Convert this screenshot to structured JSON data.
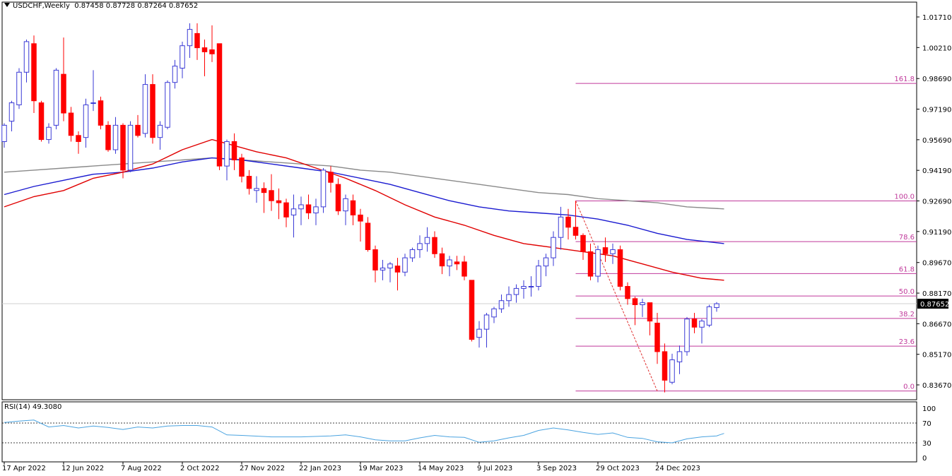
{
  "header": {
    "symbol": "USDCHF,Weekly",
    "ohlc": "0.87458 0.87728 0.87264 0.87652"
  },
  "rsi": {
    "label": "RSI(14) 49.3080",
    "levels_label": [
      "100",
      "70",
      "30",
      "0"
    ],
    "dotted_levels": [
      70,
      30
    ]
  },
  "colors": {
    "bull": "#3a3ad6",
    "bear": "#ff0000",
    "sma_fast": "#e00000",
    "sma_mid": "#1a1ad0",
    "sma_slow": "#8a8a8a",
    "fib": "#c0399b",
    "rsi": "#4aa3e0"
  },
  "chart_data": {
    "type": "candlestick",
    "price_ticks": [
      "1.01710",
      "1.00210",
      "0.98690",
      "0.97190",
      "0.95690",
      "0.94190",
      "0.92690",
      "0.91190",
      "0.89670",
      "0.88170",
      "0.86670",
      "0.85170",
      "0.83670"
    ],
    "x_ticks": [
      "17 Apr 2022",
      "12 Jun 2022",
      "7 Aug 2022",
      "2 Oct 2022",
      "27 Nov 2022",
      "22 Jan 2023",
      "19 Mar 2023",
      "14 May 2023",
      "9 Jul 2023",
      "3 Sep 2023",
      "29 Oct 2023",
      "24 Dec 2023"
    ],
    "x_tick_index": [
      0,
      8,
      16,
      24,
      32,
      40,
      48,
      56,
      64,
      72,
      80,
      88
    ],
    "current_price": "0.87652",
    "fibonacci": {
      "high": 0.9269,
      "low": 0.8337,
      "start_index": 77,
      "end_index": 88,
      "levels": [
        {
          "label": "161.8",
          "ratio": 1.618
        },
        {
          "label": "100.0",
          "ratio": 1.0
        },
        {
          "label": "78.6",
          "ratio": 0.786
        },
        {
          "label": "61.8",
          "ratio": 0.618
        },
        {
          "label": "50.0",
          "ratio": 0.5
        },
        {
          "label": "38.2",
          "ratio": 0.382
        },
        {
          "label": "23.6",
          "ratio": 0.236
        },
        {
          "label": "0.0",
          "ratio": 0.0
        }
      ]
    },
    "candles": [
      {
        "o": 0.956,
        "h": 0.965,
        "l": 0.953,
        "c": 0.964
      },
      {
        "o": 0.966,
        "h": 0.976,
        "l": 0.961,
        "c": 0.975
      },
      {
        "o": 0.974,
        "h": 0.992,
        "l": 0.972,
        "c": 0.99
      },
      {
        "o": 0.99,
        "h": 1.006,
        "l": 0.985,
        "c": 1.005
      },
      {
        "o": 1.004,
        "h": 1.008,
        "l": 0.97,
        "c": 0.976
      },
      {
        "o": 0.975,
        "h": 0.976,
        "l": 0.956,
        "c": 0.957
      },
      {
        "o": 0.957,
        "h": 0.965,
        "l": 0.955,
        "c": 0.963
      },
      {
        "o": 0.964,
        "h": 0.992,
        "l": 0.962,
        "c": 0.991
      },
      {
        "o": 0.989,
        "h": 1.007,
        "l": 0.966,
        "c": 0.97
      },
      {
        "o": 0.97,
        "h": 0.973,
        "l": 0.956,
        "c": 0.959
      },
      {
        "o": 0.959,
        "h": 0.961,
        "l": 0.95,
        "c": 0.956
      },
      {
        "o": 0.958,
        "h": 0.977,
        "l": 0.953,
        "c": 0.974
      },
      {
        "o": 0.975,
        "h": 0.991,
        "l": 0.971,
        "c": 0.975
      },
      {
        "o": 0.976,
        "h": 0.978,
        "l": 0.962,
        "c": 0.964
      },
      {
        "o": 0.964,
        "h": 0.966,
        "l": 0.951,
        "c": 0.952
      },
      {
        "o": 0.952,
        "h": 0.968,
        "l": 0.95,
        "c": 0.964
      },
      {
        "o": 0.964,
        "h": 0.965,
        "l": 0.938,
        "c": 0.942
      },
      {
        "o": 0.942,
        "h": 0.966,
        "l": 0.941,
        "c": 0.964
      },
      {
        "o": 0.964,
        "h": 0.969,
        "l": 0.958,
        "c": 0.959
      },
      {
        "o": 0.96,
        "h": 0.989,
        "l": 0.958,
        "c": 0.984
      },
      {
        "o": 0.984,
        "h": 0.989,
        "l": 0.955,
        "c": 0.958
      },
      {
        "o": 0.958,
        "h": 0.966,
        "l": 0.952,
        "c": 0.964
      },
      {
        "o": 0.963,
        "h": 0.986,
        "l": 0.962,
        "c": 0.985
      },
      {
        "o": 0.985,
        "h": 0.996,
        "l": 0.982,
        "c": 0.993
      },
      {
        "o": 0.992,
        "h": 1.005,
        "l": 0.987,
        "c": 1.003
      },
      {
        "o": 1.003,
        "h": 1.014,
        "l": 0.997,
        "c": 1.011
      },
      {
        "o": 1.009,
        "h": 1.014,
        "l": 0.996,
        "c": 1.002
      },
      {
        "o": 1.002,
        "h": 1.006,
        "l": 0.988,
        "c": 1.0
      },
      {
        "o": 1.001,
        "h": 1.013,
        "l": 0.995,
        "c": 0.999
      },
      {
        "o": 1.004,
        "h": 1.004,
        "l": 0.942,
        "c": 0.944
      },
      {
        "o": 0.944,
        "h": 0.957,
        "l": 0.937,
        "c": 0.956
      },
      {
        "o": 0.956,
        "h": 0.96,
        "l": 0.942,
        "c": 0.947
      },
      {
        "o": 0.948,
        "h": 0.95,
        "l": 0.936,
        "c": 0.939
      },
      {
        "o": 0.939,
        "h": 0.942,
        "l": 0.93,
        "c": 0.933
      },
      {
        "o": 0.932,
        "h": 0.939,
        "l": 0.926,
        "c": 0.933
      },
      {
        "o": 0.933,
        "h": 0.936,
        "l": 0.921,
        "c": 0.931
      },
      {
        "o": 0.932,
        "h": 0.94,
        "l": 0.922,
        "c": 0.927
      },
      {
        "o": 0.927,
        "h": 0.933,
        "l": 0.918,
        "c": 0.926
      },
      {
        "o": 0.926,
        "h": 0.928,
        "l": 0.914,
        "c": 0.919
      },
      {
        "o": 0.92,
        "h": 0.93,
        "l": 0.909,
        "c": 0.923
      },
      {
        "o": 0.923,
        "h": 0.929,
        "l": 0.915,
        "c": 0.925
      },
      {
        "o": 0.925,
        "h": 0.93,
        "l": 0.918,
        "c": 0.921
      },
      {
        "o": 0.921,
        "h": 0.928,
        "l": 0.915,
        "c": 0.924
      },
      {
        "o": 0.924,
        "h": 0.943,
        "l": 0.921,
        "c": 0.942
      },
      {
        "o": 0.941,
        "h": 0.944,
        "l": 0.931,
        "c": 0.936
      },
      {
        "o": 0.935,
        "h": 0.938,
        "l": 0.92,
        "c": 0.922
      },
      {
        "o": 0.922,
        "h": 0.93,
        "l": 0.915,
        "c": 0.928
      },
      {
        "o": 0.927,
        "h": 0.93,
        "l": 0.915,
        "c": 0.92
      },
      {
        "o": 0.92,
        "h": 0.923,
        "l": 0.907,
        "c": 0.917
      },
      {
        "o": 0.916,
        "h": 0.919,
        "l": 0.902,
        "c": 0.903
      },
      {
        "o": 0.903,
        "h": 0.905,
        "l": 0.887,
        "c": 0.893
      },
      {
        "o": 0.893,
        "h": 0.898,
        "l": 0.888,
        "c": 0.894
      },
      {
        "o": 0.894,
        "h": 0.897,
        "l": 0.887,
        "c": 0.896
      },
      {
        "o": 0.895,
        "h": 0.899,
        "l": 0.883,
        "c": 0.892
      },
      {
        "o": 0.892,
        "h": 0.901,
        "l": 0.89,
        "c": 0.899
      },
      {
        "o": 0.899,
        "h": 0.904,
        "l": 0.897,
        "c": 0.903
      },
      {
        "o": 0.903,
        "h": 0.91,
        "l": 0.899,
        "c": 0.906
      },
      {
        "o": 0.906,
        "h": 0.914,
        "l": 0.902,
        "c": 0.909
      },
      {
        "o": 0.909,
        "h": 0.912,
        "l": 0.899,
        "c": 0.901
      },
      {
        "o": 0.901,
        "h": 0.904,
        "l": 0.891,
        "c": 0.895
      },
      {
        "o": 0.895,
        "h": 0.9,
        "l": 0.89,
        "c": 0.898
      },
      {
        "o": 0.897,
        "h": 0.9,
        "l": 0.893,
        "c": 0.896
      },
      {
        "o": 0.897,
        "h": 0.9,
        "l": 0.888,
        "c": 0.89
      },
      {
        "o": 0.888,
        "h": 0.888,
        "l": 0.858,
        "c": 0.859
      },
      {
        "o": 0.86,
        "h": 0.868,
        "l": 0.855,
        "c": 0.864
      },
      {
        "o": 0.864,
        "h": 0.872,
        "l": 0.855,
        "c": 0.871
      },
      {
        "o": 0.87,
        "h": 0.875,
        "l": 0.867,
        "c": 0.874
      },
      {
        "o": 0.874,
        "h": 0.881,
        "l": 0.872,
        "c": 0.878
      },
      {
        "o": 0.878,
        "h": 0.885,
        "l": 0.875,
        "c": 0.881
      },
      {
        "o": 0.881,
        "h": 0.886,
        "l": 0.877,
        "c": 0.884
      },
      {
        "o": 0.884,
        "h": 0.888,
        "l": 0.879,
        "c": 0.885
      },
      {
        "o": 0.885,
        "h": 0.89,
        "l": 0.88,
        "c": 0.885
      },
      {
        "o": 0.885,
        "h": 0.898,
        "l": 0.883,
        "c": 0.895
      },
      {
        "o": 0.895,
        "h": 0.901,
        "l": 0.89,
        "c": 0.899
      },
      {
        "o": 0.899,
        "h": 0.912,
        "l": 0.895,
        "c": 0.909
      },
      {
        "o": 0.909,
        "h": 0.924,
        "l": 0.903,
        "c": 0.919
      },
      {
        "o": 0.919,
        "h": 0.923,
        "l": 0.908,
        "c": 0.914
      },
      {
        "o": 0.914,
        "h": 0.927,
        "l": 0.908,
        "c": 0.91
      },
      {
        "o": 0.91,
        "h": 0.911,
        "l": 0.898,
        "c": 0.902
      },
      {
        "o": 0.902,
        "h": 0.906,
        "l": 0.888,
        "c": 0.89
      },
      {
        "o": 0.89,
        "h": 0.905,
        "l": 0.887,
        "c": 0.903
      },
      {
        "o": 0.904,
        "h": 0.909,
        "l": 0.897,
        "c": 0.901
      },
      {
        "o": 0.901,
        "h": 0.906,
        "l": 0.896,
        "c": 0.903
      },
      {
        "o": 0.903,
        "h": 0.905,
        "l": 0.883,
        "c": 0.885
      },
      {
        "o": 0.885,
        "h": 0.887,
        "l": 0.876,
        "c": 0.879
      },
      {
        "o": 0.879,
        "h": 0.88,
        "l": 0.866,
        "c": 0.876
      },
      {
        "o": 0.876,
        "h": 0.879,
        "l": 0.87,
        "c": 0.877
      },
      {
        "o": 0.877,
        "h": 0.877,
        "l": 0.861,
        "c": 0.868
      },
      {
        "o": 0.867,
        "h": 0.872,
        "l": 0.847,
        "c": 0.853
      },
      {
        "o": 0.853,
        "h": 0.857,
        "l": 0.833,
        "c": 0.839
      },
      {
        "o": 0.838,
        "h": 0.852,
        "l": 0.837,
        "c": 0.849
      },
      {
        "o": 0.848,
        "h": 0.856,
        "l": 0.842,
        "c": 0.853
      },
      {
        "o": 0.853,
        "h": 0.87,
        "l": 0.851,
        "c": 0.869
      },
      {
        "o": 0.869,
        "h": 0.872,
        "l": 0.862,
        "c": 0.865
      },
      {
        "o": 0.865,
        "h": 0.869,
        "l": 0.857,
        "c": 0.868
      },
      {
        "o": 0.866,
        "h": 0.876,
        "l": 0.865,
        "c": 0.875
      },
      {
        "o": 0.8746,
        "h": 0.8773,
        "l": 0.8726,
        "c": 0.8765
      }
    ],
    "sma_fast": [
      [
        0,
        0.924
      ],
      [
        4,
        0.929
      ],
      [
        8,
        0.932
      ],
      [
        12,
        0.938
      ],
      [
        16,
        0.941
      ],
      [
        20,
        0.945
      ],
      [
        24,
        0.952
      ],
      [
        28,
        0.957
      ],
      [
        30,
        0.955
      ],
      [
        34,
        0.951
      ],
      [
        38,
        0.948
      ],
      [
        42,
        0.943
      ],
      [
        46,
        0.938
      ],
      [
        50,
        0.932
      ],
      [
        54,
        0.925
      ],
      [
        58,
        0.919
      ],
      [
        62,
        0.915
      ],
      [
        66,
        0.91
      ],
      [
        70,
        0.906
      ],
      [
        74,
        0.904
      ],
      [
        78,
        0.902
      ],
      [
        82,
        0.9
      ],
      [
        86,
        0.896
      ],
      [
        90,
        0.892
      ],
      [
        94,
        0.889
      ],
      [
        97,
        0.888
      ]
    ],
    "sma_mid": [
      [
        0,
        0.93
      ],
      [
        4,
        0.934
      ],
      [
        8,
        0.937
      ],
      [
        12,
        0.94
      ],
      [
        16,
        0.941
      ],
      [
        20,
        0.943
      ],
      [
        24,
        0.946
      ],
      [
        28,
        0.948
      ],
      [
        32,
        0.947
      ],
      [
        36,
        0.945
      ],
      [
        40,
        0.943
      ],
      [
        44,
        0.941
      ],
      [
        48,
        0.938
      ],
      [
        52,
        0.935
      ],
      [
        56,
        0.931
      ],
      [
        60,
        0.927
      ],
      [
        64,
        0.924
      ],
      [
        68,
        0.922
      ],
      [
        72,
        0.921
      ],
      [
        76,
        0.92
      ],
      [
        80,
        0.918
      ],
      [
        84,
        0.915
      ],
      [
        88,
        0.911
      ],
      [
        92,
        0.908
      ],
      [
        97,
        0.906
      ]
    ],
    "sma_slow": [
      [
        0,
        0.941
      ],
      [
        4,
        0.942
      ],
      [
        8,
        0.943
      ],
      [
        12,
        0.944
      ],
      [
        16,
        0.945
      ],
      [
        20,
        0.946
      ],
      [
        24,
        0.947
      ],
      [
        28,
        0.948
      ],
      [
        32,
        0.947
      ],
      [
        36,
        0.946
      ],
      [
        40,
        0.945
      ],
      [
        44,
        0.944
      ],
      [
        48,
        0.942
      ],
      [
        52,
        0.941
      ],
      [
        56,
        0.939
      ],
      [
        60,
        0.937
      ],
      [
        64,
        0.935
      ],
      [
        68,
        0.933
      ],
      [
        72,
        0.931
      ],
      [
        76,
        0.93
      ],
      [
        80,
        0.928
      ],
      [
        84,
        0.927
      ],
      [
        88,
        0.926
      ],
      [
        92,
        0.924
      ],
      [
        97,
        0.923
      ]
    ],
    "rsi_values": [
      [
        0,
        71
      ],
      [
        2,
        74
      ],
      [
        4,
        76
      ],
      [
        6,
        62
      ],
      [
        8,
        65
      ],
      [
        10,
        60
      ],
      [
        12,
        64
      ],
      [
        14,
        61
      ],
      [
        16,
        57
      ],
      [
        18,
        62
      ],
      [
        20,
        60
      ],
      [
        22,
        64
      ],
      [
        24,
        65
      ],
      [
        26,
        65
      ],
      [
        28,
        62
      ],
      [
        30,
        46
      ],
      [
        32,
        45
      ],
      [
        36,
        42
      ],
      [
        40,
        42
      ],
      [
        44,
        44
      ],
      [
        46,
        46
      ],
      [
        48,
        42
      ],
      [
        50,
        36
      ],
      [
        52,
        34
      ],
      [
        54,
        34
      ],
      [
        56,
        40
      ],
      [
        58,
        45
      ],
      [
        60,
        42
      ],
      [
        62,
        41
      ],
      [
        64,
        31
      ],
      [
        66,
        34
      ],
      [
        68,
        40
      ],
      [
        70,
        45
      ],
      [
        72,
        55
      ],
      [
        74,
        60
      ],
      [
        76,
        56
      ],
      [
        78,
        51
      ],
      [
        80,
        47
      ],
      [
        82,
        50
      ],
      [
        84,
        41
      ],
      [
        86,
        39
      ],
      [
        88,
        32
      ],
      [
        90,
        30
      ],
      [
        92,
        38
      ],
      [
        94,
        42
      ],
      [
        96,
        44
      ],
      [
        97,
        49
      ]
    ]
  }
}
